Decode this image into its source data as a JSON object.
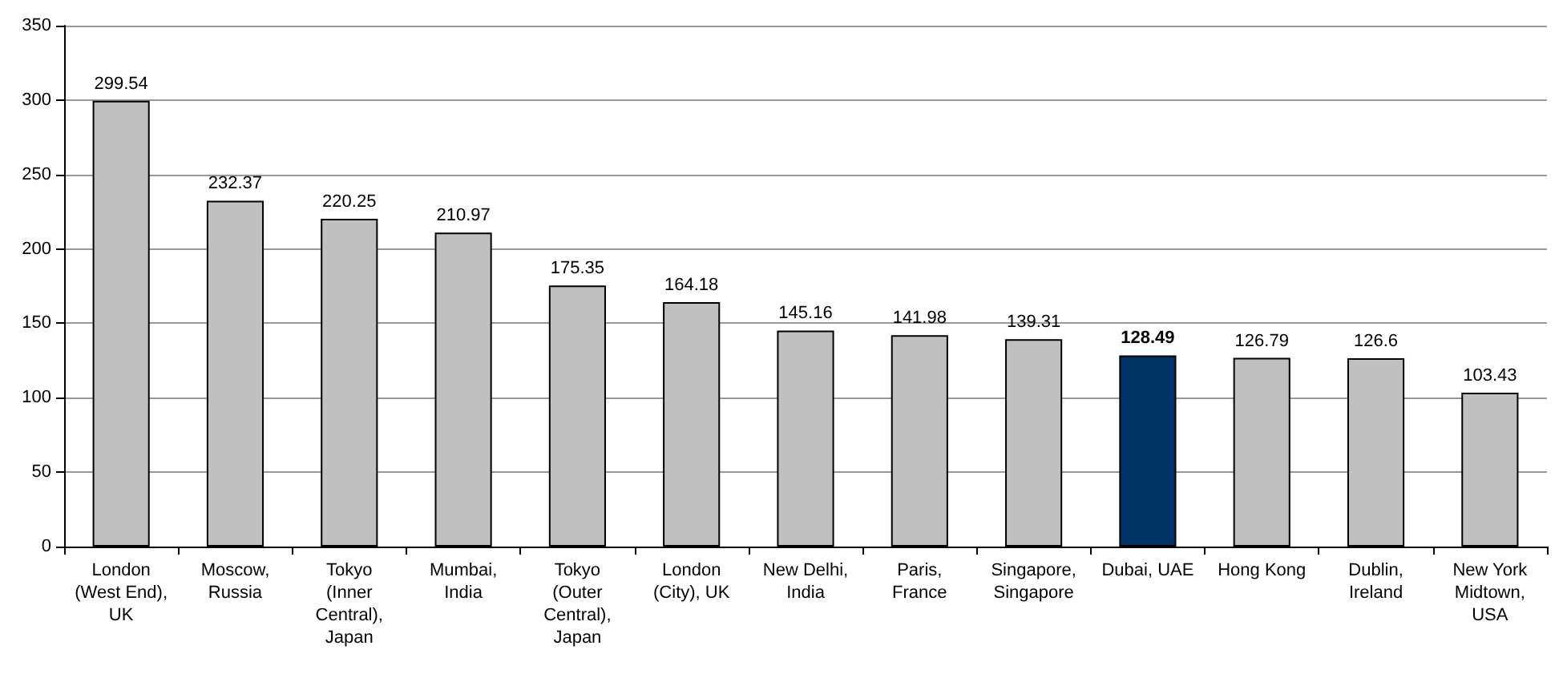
{
  "chart_data": {
    "type": "bar",
    "categories": [
      "London\n(West End),\nUK",
      "Moscow,\nRussia",
      "Tokyo\n(Inner\nCentral),\nJapan",
      "Mumbai,\nIndia",
      "Tokyo\n(Outer\nCentral),\nJapan",
      "London\n(City), UK",
      "New Delhi,\nIndia",
      "Paris,\nFrance",
      "Singapore,\nSingapore",
      "Dubai, UAE",
      "Hong Kong",
      "Dublin,\nIreland",
      "New York\nMidtown,\nUSA"
    ],
    "values": [
      299.54,
      232.37,
      220.25,
      210.97,
      175.35,
      164.18,
      145.16,
      141.98,
      139.31,
      128.49,
      126.79,
      126.6,
      103.43
    ],
    "colors": [
      "#c0c0c0",
      "#c0c0c0",
      "#c0c0c0",
      "#c0c0c0",
      "#c0c0c0",
      "#c0c0c0",
      "#c0c0c0",
      "#c0c0c0",
      "#c0c0c0",
      "#003366",
      "#c0c0c0",
      "#c0c0c0",
      "#c0c0c0"
    ],
    "ylim": [
      0,
      350
    ],
    "yticks": [
      0,
      50,
      100,
      150,
      200,
      250,
      300,
      350
    ],
    "grid": "y",
    "data_labels": true
  }
}
